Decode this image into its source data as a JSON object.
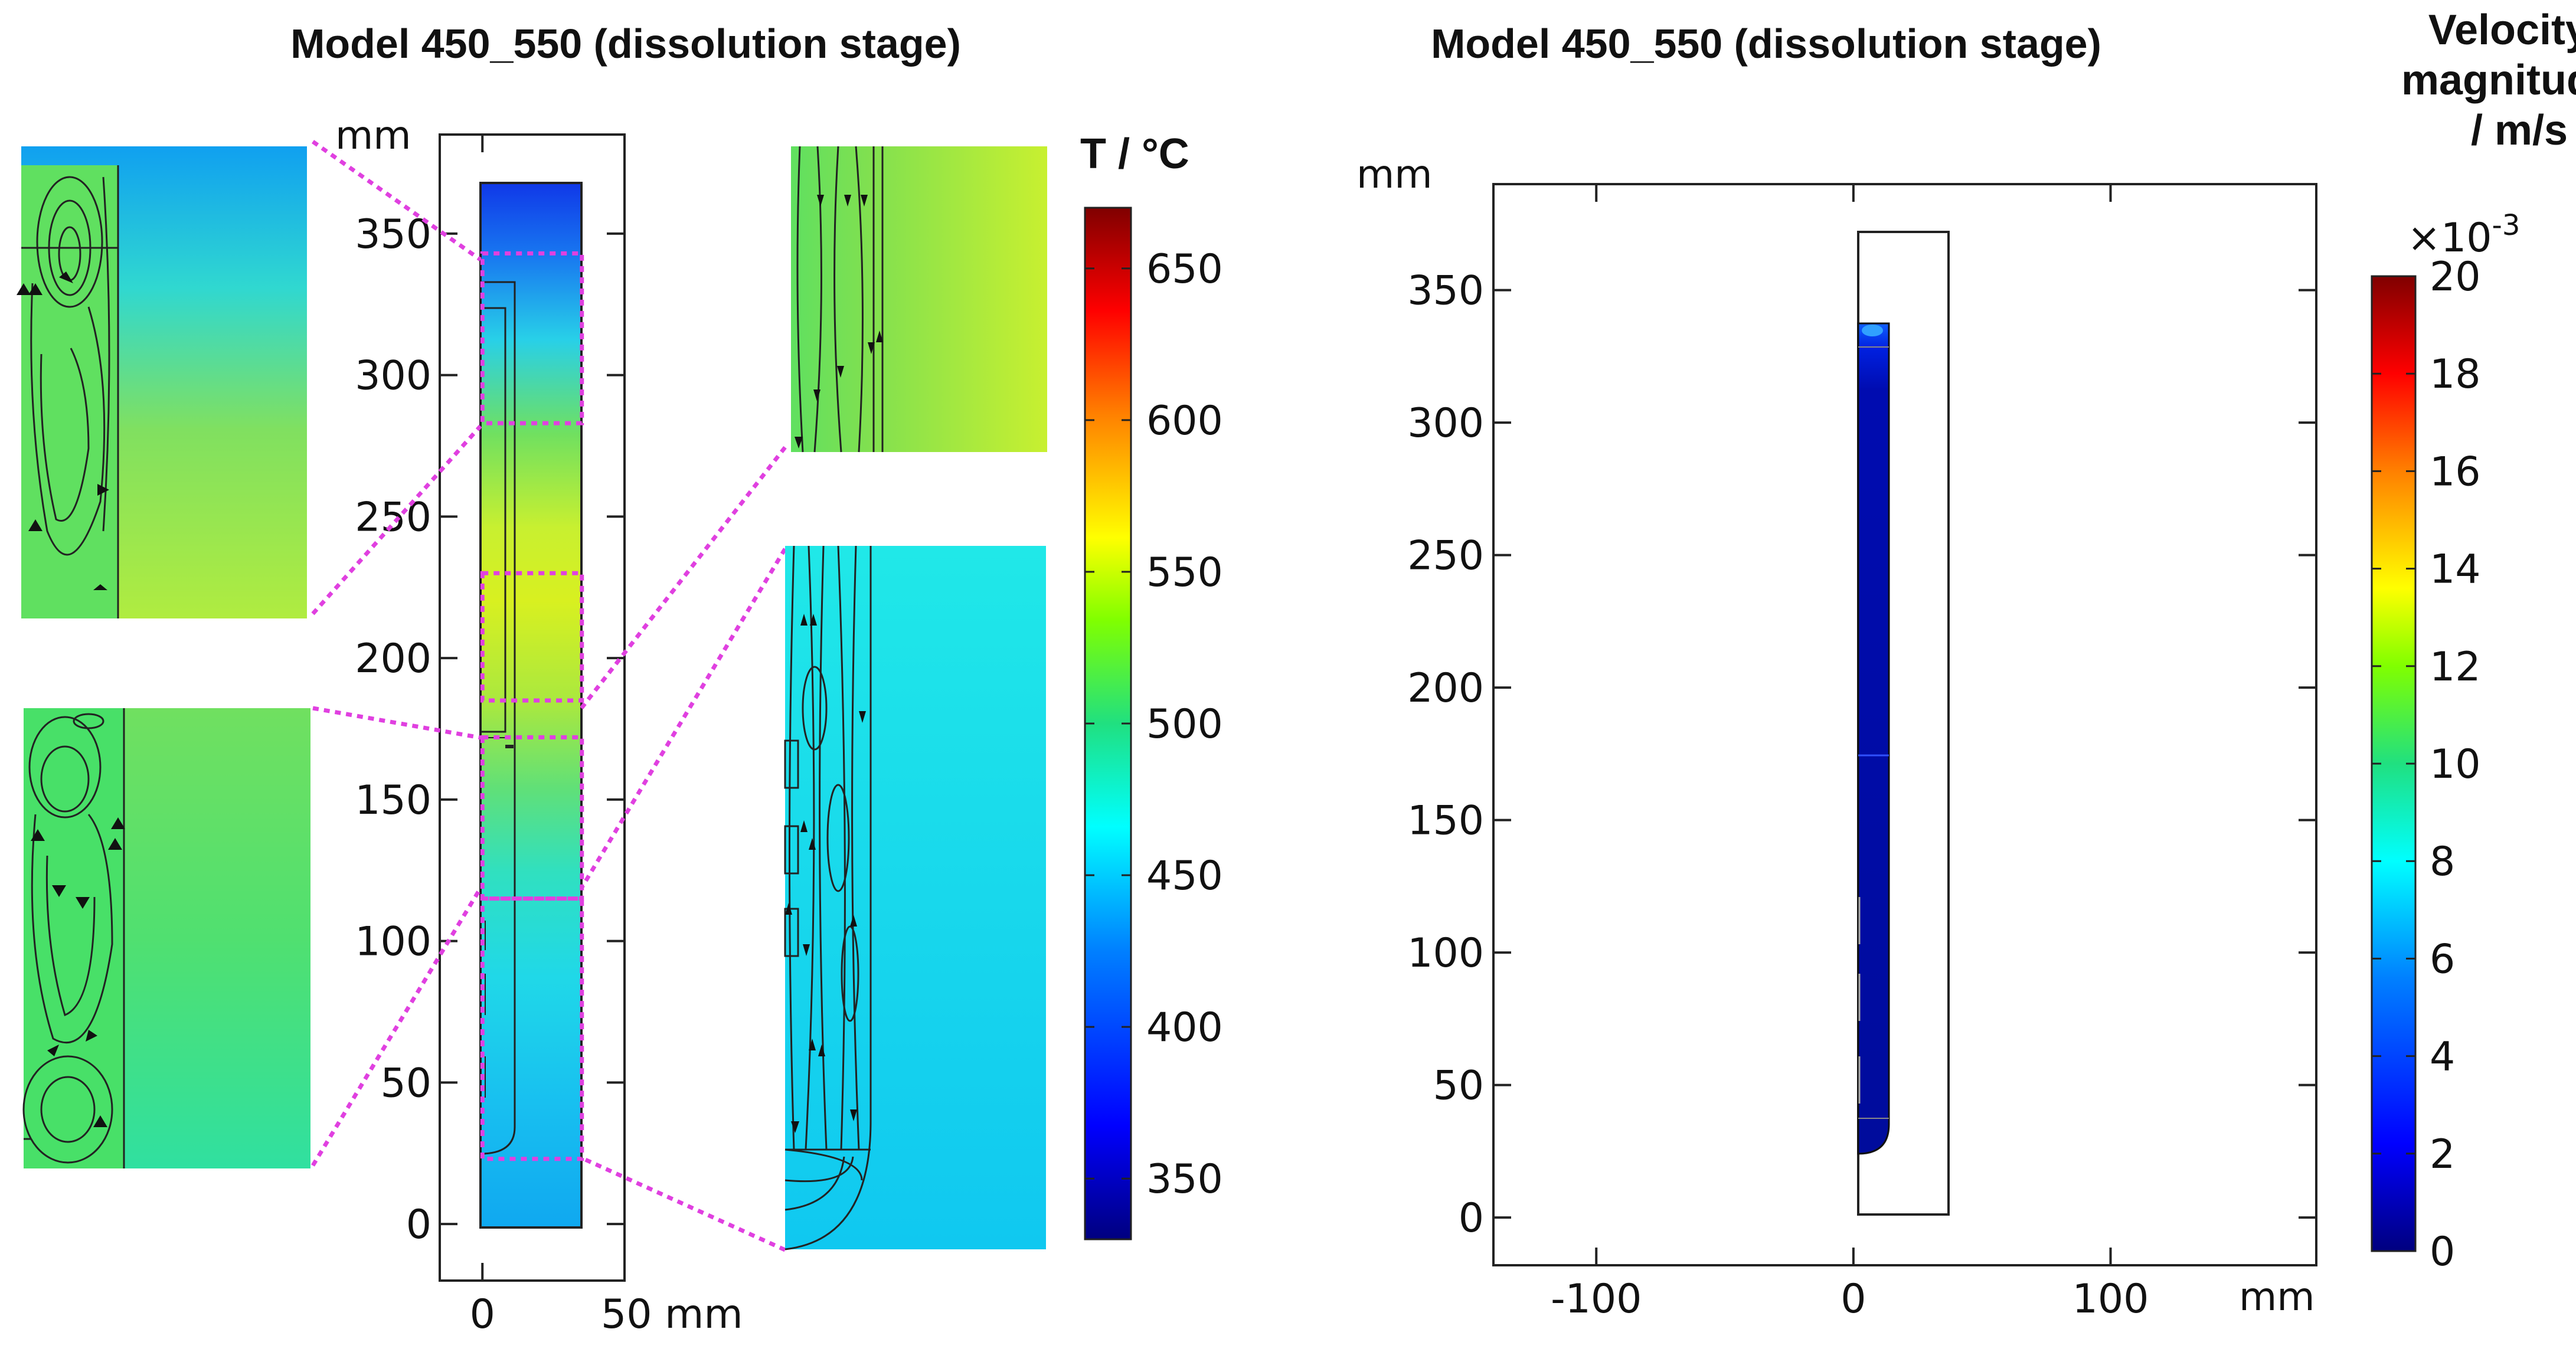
{
  "chart_data": [
    {
      "type": "contour-map",
      "panel": "left",
      "title": "Model 450_550 (dissolution stage)",
      "field": "Temperature",
      "x_unit": "mm",
      "y_unit": "mm",
      "xlim": [
        -15,
        50
      ],
      "ylim": [
        -20,
        385
      ],
      "x_ticks": [
        0,
        50
      ],
      "x_tick_labels": [
        "0",
        "50 mm"
      ],
      "y_ticks": [
        0,
        50,
        100,
        150,
        200,
        250,
        300,
        350
      ],
      "y_tick_labels": [
        "0",
        "50",
        "100",
        "150",
        "200",
        "250",
        "300",
        "350"
      ],
      "domain": {
        "x": [
          0,
          35
        ],
        "y": [
          0,
          372
        ]
      },
      "inner_tube": {
        "x": [
          0,
          12
        ],
        "y": [
          35,
          335
        ]
      },
      "inner_liner": {
        "x": [
          0,
          9
        ],
        "y": [
          175,
          328
        ]
      },
      "zoom_boxes": [
        {
          "x": [
            0,
            35
          ],
          "y": [
            283,
            343
          ]
        },
        {
          "x": [
            0,
            35
          ],
          "y": [
            185,
            230
          ]
        },
        {
          "x": [
            0,
            35
          ],
          "y": [
            115,
            172
          ]
        },
        {
          "x": [
            0,
            35
          ],
          "y": [
            23,
            115
          ]
        }
      ],
      "temperature_profile": [
        {
          "y": 372,
          "T": 335
        },
        {
          "y": 350,
          "T": 385
        },
        {
          "y": 320,
          "T": 445
        },
        {
          "y": 285,
          "T": 500
        },
        {
          "y": 250,
          "T": 540
        },
        {
          "y": 215,
          "T": 525
        },
        {
          "y": 175,
          "T": 505
        },
        {
          "y": 140,
          "T": 480
        },
        {
          "y": 100,
          "T": 460
        },
        {
          "y": 50,
          "T": 440
        },
        {
          "y": 0,
          "T": 425
        }
      ],
      "colorbar": {
        "title": "T / °C",
        "min": 330,
        "max": 670,
        "ticks": [
          350,
          400,
          450,
          500,
          550,
          600,
          650
        ],
        "tick_labels": [
          "350",
          "400",
          "450",
          "500",
          "550",
          "600",
          "650"
        ]
      }
    },
    {
      "type": "contour-map",
      "panel": "right",
      "title": "Model 450_550 (dissolution stage)",
      "field": "Velocity magnitude",
      "x_unit": "mm",
      "y_unit": "mm",
      "xlim": [
        -140,
        180
      ],
      "ylim": [
        -18,
        390
      ],
      "x_ticks": [
        -100,
        0,
        100
      ],
      "x_tick_labels": [
        "-100",
        "0",
        "100"
      ],
      "y_ticks": [
        0,
        50,
        100,
        150,
        200,
        250,
        300,
        350
      ],
      "y_tick_labels": [
        "0",
        "50",
        "100",
        "150",
        "200",
        "250",
        "300",
        "350"
      ],
      "domain": {
        "x": [
          0,
          35
        ],
        "y": [
          0,
          370
        ]
      },
      "fluid_region": {
        "x": [
          0,
          12
        ],
        "y": [
          23,
          335
        ]
      },
      "velocity_profile": [
        {
          "y": 335,
          "v": 0.0055
        },
        {
          "y": 325,
          "v": 0.0025
        },
        {
          "y": 300,
          "v": 0.0008
        },
        {
          "y": 175,
          "v": 0.0012
        },
        {
          "y": 100,
          "v": 0.0005
        },
        {
          "y": 23,
          "v": 0.0005
        }
      ],
      "colorbar": {
        "title_lines": [
          "Velocity",
          "magnitude",
          "/ m/s"
        ],
        "multiplier": "×10",
        "exponent": "-3",
        "min": 0,
        "max": 20,
        "ticks": [
          0,
          2,
          4,
          6,
          8,
          10,
          12,
          14,
          16,
          18,
          20
        ],
        "tick_labels": [
          "0",
          "2",
          "4",
          "6",
          "8",
          "10",
          "12",
          "14",
          "16",
          "18",
          "20"
        ]
      }
    }
  ],
  "colormap_stops": [
    "#00007f",
    "#0000ff",
    "#0080ff",
    "#00ffff",
    "#20e080",
    "#80ff00",
    "#ffff00",
    "#ff8000",
    "#ff0000",
    "#800000"
  ]
}
